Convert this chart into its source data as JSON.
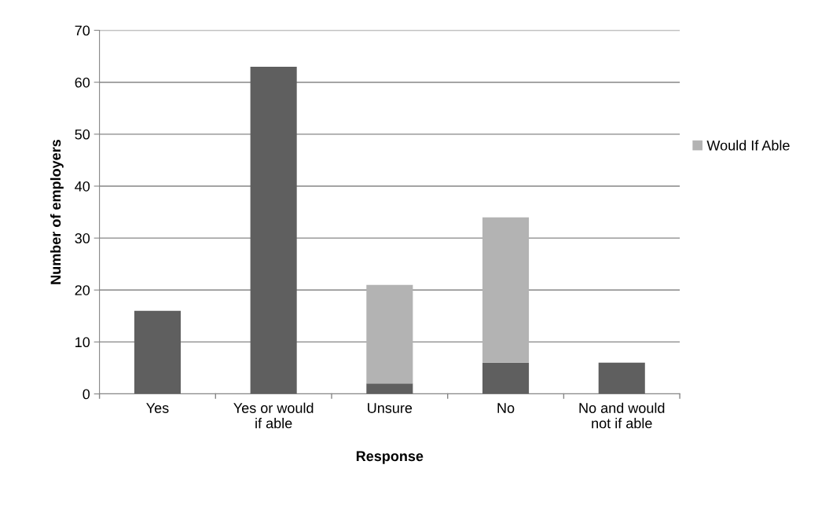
{
  "chart_data": {
    "type": "bar",
    "stacked": true,
    "xlabel": "Response",
    "ylabel": "Number of employers",
    "categories": [
      "Yes",
      "Yes or would\nif able",
      "Unsure",
      "No",
      "No and would\nnot if able"
    ],
    "series": [
      {
        "color": "#5f5f5f",
        "values": [
          16,
          63,
          2,
          6,
          6
        ]
      },
      {
        "name": "Would If Able",
        "color": "#b3b3b3",
        "values": [
          null,
          null,
          19,
          28,
          null
        ]
      }
    ],
    "ylim": [
      0,
      70
    ],
    "yticks": [
      0,
      10,
      20,
      30,
      40,
      50,
      60,
      70
    ],
    "grid": "y",
    "legend": "right"
  }
}
